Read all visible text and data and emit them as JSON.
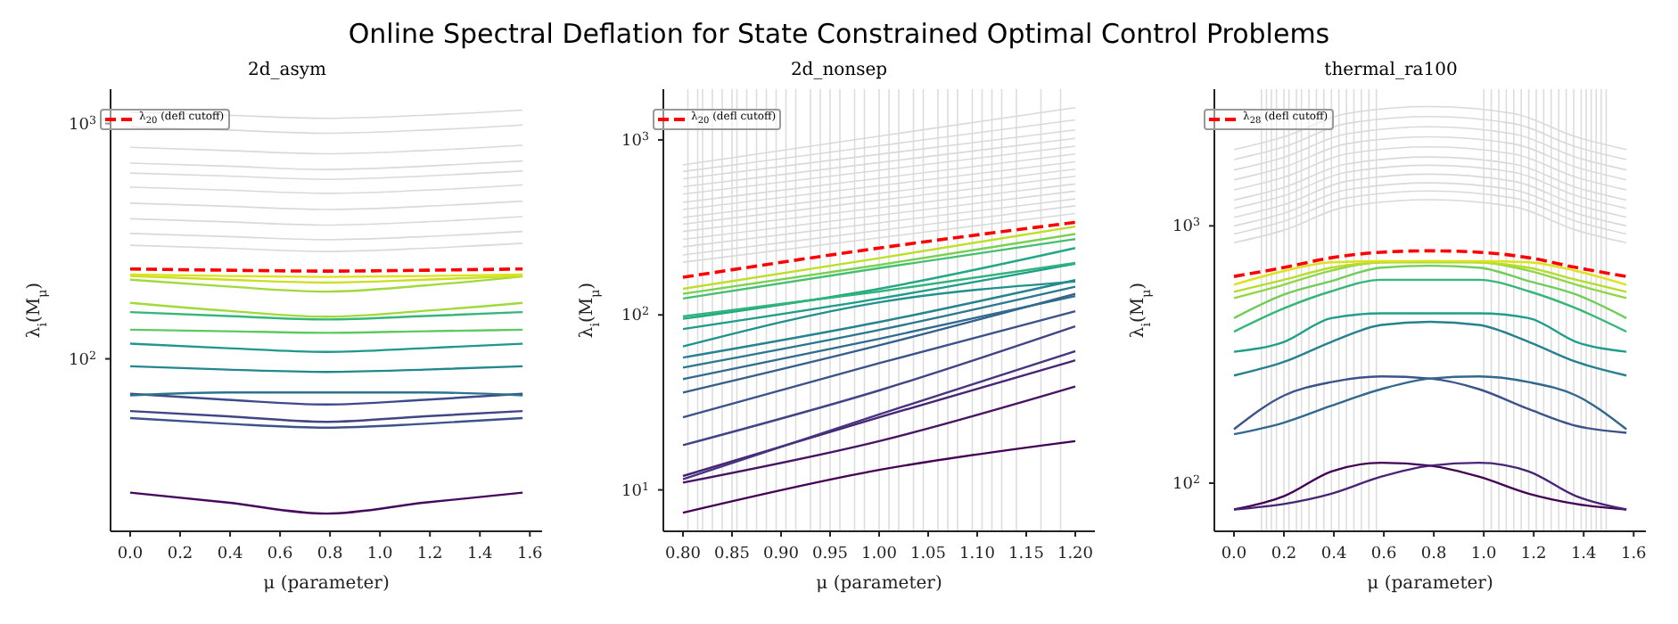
{
  "chart_data": [
    {
      "type": "line",
      "title": "2d_asym",
      "xlabel": "μ (parameter)",
      "ylabel": "λ$_{i}$(M$_{μ}$)",
      "log": "y",
      "legend": "top left",
      "annotations": [
        "Online Spectral Deflation for State Constrained Optimal Control Problems"
      ],
      "xlim": [
        -0.0785,
        1.649
      ],
      "xticks": [
        {
          "value": 0,
          "label": "0.0"
        },
        0.2,
        0.4,
        0.6,
        0.8,
        {
          "value": 1,
          "label": "1.0"
        },
        1.2,
        1.4,
        1.6
      ],
      "ylim": [
        18.5,
        1400
      ],
      "yticks": [
        {
          "value": 100,
          "label": "10$^{2}$"
        },
        {
          "value": 1000,
          "label": "10$^{3}$"
        }
      ],
      "x": [
        0,
        0.39,
        0.785,
        1.18,
        1.571
      ],
      "series": [
        {
          "color": "#d9d9d9",
          "values": [
            304,
            295,
            286,
            295,
            310
          ]
        },
        {
          "color": "#d9d9d9",
          "values": [
            341,
            331,
            321,
            331,
            348
          ]
        },
        {
          "color": "#d9d9d9",
          "values": [
            394,
            382,
            370,
            382,
            402
          ]
        },
        {
          "color": "#d9d9d9",
          "values": [
            459,
            445,
            431,
            445,
            468
          ]
        },
        {
          "color": "#d9d9d9",
          "values": [
            537,
            521,
            505,
            521,
            548
          ]
        },
        {
          "color": "#d9d9d9",
          "values": [
            616,
            598,
            579,
            598,
            628
          ]
        },
        {
          "color": "#d9d9d9",
          "values": [
            679,
            659,
            638,
            659,
            693
          ]
        },
        {
          "color": "#d9d9d9",
          "values": [
            792,
            768,
            744,
            768,
            808
          ]
        },
        {
          "color": "#d9d9d9",
          "values": [
            967,
            938,
            909,
            938,
            986
          ]
        },
        {
          "color": "#d9d9d9",
          "values": [
            1119,
            1085,
            1052,
            1085,
            1141
          ]
        },
        {
          "color": "#46085c",
          "values": [
            27,
            24.5,
            22,
            24.5,
            27
          ]
        },
        {
          "color": "#3b528b",
          "values": [
            56,
            53,
            51,
            53,
            56
          ]
        },
        {
          "color": "#414487",
          "values": [
            60,
            57,
            54,
            57,
            60
          ]
        },
        {
          "color": "#3e4a89",
          "values": [
            71,
            67,
            64,
            67,
            71
          ]
        },
        {
          "color": "#2c728e",
          "values": [
            70,
            72,
            72,
            72,
            70
          ]
        },
        {
          "color": "#23888e",
          "values": [
            93,
            90,
            88,
            90,
            93
          ]
        },
        {
          "color": "#1f988b",
          "values": [
            116,
            111,
            107,
            111,
            116
          ]
        },
        {
          "color": "#5ec962",
          "values": [
            133,
            131,
            129,
            131,
            133
          ]
        },
        {
          "color": "#35b779",
          "values": [
            158,
            152,
            147,
            152,
            158
          ]
        },
        {
          "color": "#a0da39",
          "values": [
            173,
            160,
            151,
            160,
            173
          ]
        },
        {
          "color": "#9fda3a",
          "values": [
            217,
            203,
            193,
            205,
            224
          ]
        },
        {
          "color": "#c8e020",
          "values": [
            225,
            217,
            211,
            217,
            225
          ]
        },
        {
          "color": "#dde318",
          "values": [
            228,
            225,
            223,
            225,
            228
          ]
        },
        {
          "name": "λ$_{20}$ (defl cutoff)",
          "color": "#ff0000",
          "line_style": "dashed",
          "values": [
            241,
            238,
            236,
            238,
            241
          ]
        }
      ]
    },
    {
      "type": "line",
      "title": "2d_nonsep",
      "xlabel": "μ (parameter)",
      "ylabel": "λ$_{i}$(M$_{μ}$)",
      "log": "y",
      "legend": "top left",
      "xlim": [
        0.78,
        1.22
      ],
      "xticks": [
        {
          "value": 0.8,
          "label": "0.80"
        },
        0.85,
        {
          "value": 0.9,
          "label": "0.90"
        },
        0.95,
        {
          "value": 1,
          "label": "1.00"
        },
        1.05,
        {
          "value": 1.1,
          "label": "1.10"
        },
        1.15,
        {
          "value": 1.2,
          "label": "1.20"
        }
      ],
      "ylim": [
        5.8,
        1950
      ],
      "yticks": [
        {
          "value": 10,
          "label": "10$^{1}$"
        },
        {
          "value": 100,
          "label": "10$^{2}$"
        },
        {
          "value": 1000,
          "label": "10$^{3}$"
        }
      ],
      "x": [
        0.8,
        1.0,
        1.2
      ],
      "ref_lines": [
        {
          "axis": "x",
          "value": 0.805,
          "color": "#dddddd"
        },
        {
          "axis": "x",
          "value": 0.815,
          "color": "#dddddd"
        },
        {
          "axis": "x",
          "value": 0.82,
          "color": "#dddddd"
        },
        {
          "axis": "x",
          "value": 0.83,
          "color": "#dddddd"
        },
        {
          "axis": "x",
          "value": 0.84,
          "color": "#dddddd"
        },
        {
          "axis": "x",
          "value": 0.85,
          "color": "#dddddd"
        },
        {
          "axis": "x",
          "value": 0.855,
          "color": "#dddddd"
        },
        {
          "axis": "x",
          "value": 0.865,
          "color": "#dddddd"
        },
        {
          "axis": "x",
          "value": 0.875,
          "color": "#dddddd"
        },
        {
          "axis": "x",
          "value": 0.885,
          "color": "#dddddd"
        },
        {
          "axis": "x",
          "value": 0.895,
          "color": "#dddddd"
        },
        {
          "axis": "x",
          "value": 0.905,
          "color": "#dddddd"
        },
        {
          "axis": "x",
          "value": 0.915,
          "color": "#dddddd"
        },
        {
          "axis": "x",
          "value": 0.93,
          "color": "#dddddd"
        },
        {
          "axis": "x",
          "value": 0.94,
          "color": "#dddddd"
        },
        {
          "axis": "x",
          "value": 0.95,
          "color": "#dddddd"
        },
        {
          "axis": "x",
          "value": 0.96,
          "color": "#dddddd"
        },
        {
          "axis": "x",
          "value": 0.975,
          "color": "#dddddd"
        },
        {
          "axis": "x",
          "value": 0.985,
          "color": "#dddddd"
        },
        {
          "axis": "x",
          "value": 1.0,
          "color": "#dddddd"
        },
        {
          "axis": "x",
          "value": 1.01,
          "color": "#dddddd"
        },
        {
          "axis": "x",
          "value": 1.02,
          "color": "#dddddd"
        },
        {
          "axis": "x",
          "value": 1.035,
          "color": "#dddddd"
        },
        {
          "axis": "x",
          "value": 1.045,
          "color": "#dddddd"
        },
        {
          "axis": "x",
          "value": 1.06,
          "color": "#dddddd"
        },
        {
          "axis": "x",
          "value": 1.07,
          "color": "#dddddd"
        },
        {
          "axis": "x",
          "value": 1.08,
          "color": "#dddddd"
        },
        {
          "axis": "x",
          "value": 1.095,
          "color": "#dddddd"
        },
        {
          "axis": "x",
          "value": 1.105,
          "color": "#dddddd"
        },
        {
          "axis": "x",
          "value": 1.115,
          "color": "#dddddd"
        },
        {
          "axis": "x",
          "value": 1.125,
          "color": "#dddddd"
        },
        {
          "axis": "x",
          "value": 1.14,
          "color": "#dddddd"
        },
        {
          "axis": "x",
          "value": 1.165,
          "color": "#dddddd"
        },
        {
          "axis": "x",
          "value": 1.185,
          "color": "#dddddd"
        }
      ],
      "series": [
        {
          "color": "#d9d9d9",
          "values": [
            200,
            276,
            380
          ]
        },
        {
          "color": "#d9d9d9",
          "values": [
            220,
            304,
            420
          ]
        },
        {
          "color": "#d9d9d9",
          "values": [
            245,
            336,
            460
          ]
        },
        {
          "color": "#d9d9d9",
          "values": [
            270,
            371,
            510
          ]
        },
        {
          "color": "#d9d9d9",
          "values": [
            300,
            410,
            560
          ]
        },
        {
          "color": "#d9d9d9",
          "values": [
            330,
            452,
            620
          ]
        },
        {
          "color": "#d9d9d9",
          "values": [
            360,
            495,
            680
          ]
        },
        {
          "color": "#d9d9d9",
          "values": [
            400,
            548,
            750
          ]
        },
        {
          "color": "#d9d9d9",
          "values": [
            440,
            604,
            830
          ]
        },
        {
          "color": "#d9d9d9",
          "values": [
            490,
            671,
            920
          ]
        },
        {
          "color": "#d9d9d9",
          "values": [
            540,
            742,
            1020
          ]
        },
        {
          "color": "#d9d9d9",
          "values": [
            600,
            827,
            1140
          ]
        },
        {
          "color": "#d9d9d9",
          "values": [
            660,
            926,
            1300
          ]
        },
        {
          "color": "#d9d9d9",
          "values": [
            720,
            1050,
            1530
          ]
        },
        {
          "color": "#440154",
          "values": [
            7.4,
            13,
            19
          ]
        },
        {
          "color": "#471365",
          "values": [
            11,
            19,
            39
          ]
        },
        {
          "color": "#482475",
          "values": [
            12,
            26,
            55
          ]
        },
        {
          "color": "#463480",
          "values": [
            11.5,
            27,
            62
          ]
        },
        {
          "color": "#414487",
          "values": [
            18,
            37,
            86
          ]
        },
        {
          "color": "#3b528b",
          "values": [
            26,
            53,
            105
          ]
        },
        {
          "color": "#355f8d",
          "values": [
            36,
            67,
            132
          ]
        },
        {
          "color": "#2f6c8e",
          "values": [
            43,
            73,
            128
          ]
        },
        {
          "color": "#2a788e",
          "values": [
            50,
            82,
            145
          ]
        },
        {
          "color": "#25848e",
          "values": [
            57,
            91,
            158
          ]
        },
        {
          "color": "#21918c",
          "values": [
            66,
            118,
            155
          ]
        },
        {
          "color": "#1e9c89",
          "values": [
            83,
            124,
            196
          ]
        },
        {
          "color": "#22a884",
          "values": [
            95,
            141,
            241
          ]
        },
        {
          "color": "#2fb47c",
          "values": [
            98,
            136,
            198
          ]
        },
        {
          "color": "#44bf70",
          "values": [
            124,
            185,
            271
          ]
        },
        {
          "color": "#7ad151",
          "values": [
            132,
            193,
            290
          ]
        },
        {
          "color": "#bddf26",
          "values": [
            141,
            211,
            320
          ]
        },
        {
          "name": "λ$_{20}$ (defl cutoff)",
          "color": "#ff0000",
          "line_style": "dashed",
          "values": [
            164,
            241,
            338
          ]
        }
      ]
    },
    {
      "type": "line",
      "title": "thermal_ra100",
      "xlabel": "μ (parameter)",
      "ylabel": "λ$_{i}$(M$_{μ}$)",
      "log": "y",
      "legend": "top left",
      "xlim": [
        -0.0785,
        1.649
      ],
      "xticks": [
        {
          "value": 0,
          "label": "0.0"
        },
        0.2,
        0.4,
        0.6,
        0.8,
        {
          "value": 1,
          "label": "1.0"
        },
        1.2,
        1.4,
        1.6
      ],
      "ylim": [
        65,
        3400
      ],
      "yticks": [
        {
          "value": 100,
          "label": "10$^{2}$"
        },
        {
          "value": 1000,
          "label": "10$^{3}$"
        }
      ],
      "x": [
        0,
        0.2,
        0.39,
        0.59,
        0.785,
        0.98,
        1.18,
        1.37,
        1.571
      ],
      "ref_lines": [
        {
          "axis": "x",
          "value": 0.11,
          "color": "#dddddd"
        },
        {
          "axis": "x",
          "value": 0.13,
          "color": "#dddddd"
        },
        {
          "axis": "x",
          "value": 0.15,
          "color": "#dddddd"
        },
        {
          "axis": "x",
          "value": 0.17,
          "color": "#dddddd"
        },
        {
          "axis": "x",
          "value": 0.2,
          "color": "#dddddd"
        },
        {
          "axis": "x",
          "value": 0.22,
          "color": "#dddddd"
        },
        {
          "axis": "x",
          "value": 0.25,
          "color": "#dddddd"
        },
        {
          "axis": "x",
          "value": 0.27,
          "color": "#dddddd"
        },
        {
          "axis": "x",
          "value": 0.3,
          "color": "#dddddd"
        },
        {
          "axis": "x",
          "value": 0.33,
          "color": "#dddddd"
        },
        {
          "axis": "x",
          "value": 0.36,
          "color": "#dddddd"
        },
        {
          "axis": "x",
          "value": 0.39,
          "color": "#dddddd"
        },
        {
          "axis": "x",
          "value": 0.42,
          "color": "#dddddd"
        },
        {
          "axis": "x",
          "value": 0.45,
          "color": "#dddddd"
        },
        {
          "axis": "x",
          "value": 0.48,
          "color": "#dddddd"
        },
        {
          "axis": "x",
          "value": 0.51,
          "color": "#dddddd"
        },
        {
          "axis": "x",
          "value": 0.54,
          "color": "#dddddd"
        },
        {
          "axis": "x",
          "value": 0.57,
          "color": "#dddddd"
        },
        {
          "axis": "x",
          "value": 1.0,
          "color": "#dddddd"
        },
        {
          "axis": "x",
          "value": 1.03,
          "color": "#dddddd"
        },
        {
          "axis": "x",
          "value": 1.06,
          "color": "#dddddd"
        },
        {
          "axis": "x",
          "value": 1.09,
          "color": "#dddddd"
        },
        {
          "axis": "x",
          "value": 1.12,
          "color": "#dddddd"
        },
        {
          "axis": "x",
          "value": 1.15,
          "color": "#dddddd"
        },
        {
          "axis": "x",
          "value": 1.18,
          "color": "#dddddd"
        },
        {
          "axis": "x",
          "value": 1.21,
          "color": "#dddddd"
        },
        {
          "axis": "x",
          "value": 1.24,
          "color": "#dddddd"
        },
        {
          "axis": "x",
          "value": 1.27,
          "color": "#dddddd"
        },
        {
          "axis": "x",
          "value": 1.3,
          "color": "#dddddd"
        },
        {
          "axis": "x",
          "value": 1.33,
          "color": "#dddddd"
        },
        {
          "axis": "x",
          "value": 1.36,
          "color": "#dddddd"
        },
        {
          "axis": "x",
          "value": 1.39,
          "color": "#dddddd"
        },
        {
          "axis": "x",
          "value": 1.41,
          "color": "#dddddd"
        },
        {
          "axis": "x",
          "value": 1.43,
          "color": "#dddddd"
        },
        {
          "axis": "x",
          "value": 1.45,
          "color": "#dddddd"
        },
        {
          "axis": "x",
          "value": 1.47,
          "color": "#dddddd"
        },
        {
          "axis": "x",
          "value": 1.49,
          "color": "#dddddd"
        }
      ],
      "series": [
        {
          "color": "#d9d9d9",
          "x": [
            0,
            0.2,
            0.45,
            0.785,
            1.12,
            1.37,
            1.571
          ],
          "values": [
            860,
            963,
            1187,
            1264,
            1187,
            963,
            860
          ]
        },
        {
          "color": "#d9d9d9",
          "x": [
            0,
            0.2,
            0.45,
            0.785,
            1.12,
            1.37,
            1.571
          ],
          "values": [
            930,
            1042,
            1283,
            1367,
            1283,
            1042,
            930
          ]
        },
        {
          "color": "#d9d9d9",
          "x": [
            0,
            0.2,
            0.45,
            0.785,
            1.12,
            1.37,
            1.571
          ],
          "values": [
            1000,
            1120,
            1380,
            1470,
            1380,
            1120,
            1000
          ]
        },
        {
          "color": "#d9d9d9",
          "x": [
            0,
            0.2,
            0.45,
            0.785,
            1.12,
            1.37,
            1.571
          ],
          "values": [
            1080,
            1210,
            1490,
            1588,
            1490,
            1210,
            1080
          ]
        },
        {
          "color": "#d9d9d9",
          "x": [
            0,
            0.2,
            0.45,
            0.785,
            1.12,
            1.37,
            1.571
          ],
          "values": [
            1170,
            1310,
            1615,
            1720,
            1615,
            1310,
            1170
          ]
        },
        {
          "color": "#d9d9d9",
          "x": [
            0,
            0.2,
            0.45,
            0.785,
            1.12,
            1.37,
            1.571
          ],
          "values": [
            1260,
            1411,
            1739,
            1852,
            1739,
            1411,
            1260
          ]
        },
        {
          "color": "#d9d9d9",
          "x": [
            0,
            0.2,
            0.45,
            0.785,
            1.12,
            1.37,
            1.571
          ],
          "values": [
            1380,
            1546,
            1904,
            2029,
            1904,
            1546,
            1380
          ]
        },
        {
          "color": "#d9d9d9",
          "x": [
            0,
            0.2,
            0.45,
            0.785,
            1.12,
            1.37,
            1.571
          ],
          "values": [
            1510,
            1691,
            2084,
            2220,
            2084,
            1691,
            1510
          ]
        },
        {
          "color": "#d9d9d9",
          "x": [
            0,
            0.2,
            0.45,
            0.785,
            1.12,
            1.37,
            1.571
          ],
          "values": [
            1650,
            1848,
            2277,
            2426,
            2277,
            1848,
            1650
          ]
        },
        {
          "color": "#d9d9d9",
          "x": [
            0,
            0.2,
            0.45,
            0.785,
            1.12,
            1.37,
            1.571
          ],
          "values": [
            1810,
            2027,
            2498,
            2661,
            2498,
            2027,
            1810
          ]
        },
        {
          "color": "#d9d9d9",
          "x": [
            0,
            0.2,
            0.45,
            0.785,
            1.12,
            1.37,
            1.571
          ],
          "values": [
            1980,
            2218,
            2732,
            2911,
            2732,
            2218,
            1980
          ]
        },
        {
          "color": "#440154",
          "values": [
            79,
            89,
            111,
            120,
            117,
            106,
            91,
            83,
            79
          ]
        },
        {
          "color": "#482475",
          "values": [
            79,
            83,
            91,
            106,
            117,
            120,
            111,
            89,
            79
          ]
        },
        {
          "color": "#3b528b",
          "values": [
            162,
            219,
            247,
            260,
            255,
            232,
            194,
            167,
            157
          ]
        },
        {
          "color": "#31688e",
          "values": [
            155,
            172,
            200,
            232,
            255,
            260,
            247,
            219,
            162
          ]
        },
        {
          "color": "#26828e",
          "values": [
            262,
            296,
            354,
            412,
            424,
            412,
            354,
            296,
            262
          ]
        },
        {
          "color": "#1f9e89",
          "values": [
            324,
            354,
            438,
            457,
            457,
            457,
            438,
            354,
            324
          ]
        },
        {
          "color": "#35b779",
          "values": [
            388,
            478,
            557,
            617,
            617,
            617,
            557,
            478,
            388
          ]
        },
        {
          "color": "#6ece58",
          "values": [
            438,
            541,
            610,
            688,
            700,
            688,
            610,
            541,
            438
          ]
        },
        {
          "color": "#8fd744",
          "values": [
            524,
            591,
            670,
            722,
            722,
            722,
            670,
            591,
            524
          ]
        },
        {
          "color": "#b5de2b",
          "values": [
            554,
            617,
            688,
            722,
            729,
            722,
            688,
            617,
            554
          ]
        },
        {
          "color": "#dde318",
          "values": [
            591,
            668,
            722,
            729,
            729,
            729,
            722,
            668,
            591
          ]
        },
        {
          "name": "λ$_{28}$ (defl cutoff)",
          "color": "#ff0000",
          "line_style": "dashed",
          "values": [
            636,
            689,
            752,
            790,
            800,
            790,
            752,
            689,
            636
          ]
        }
      ]
    }
  ]
}
